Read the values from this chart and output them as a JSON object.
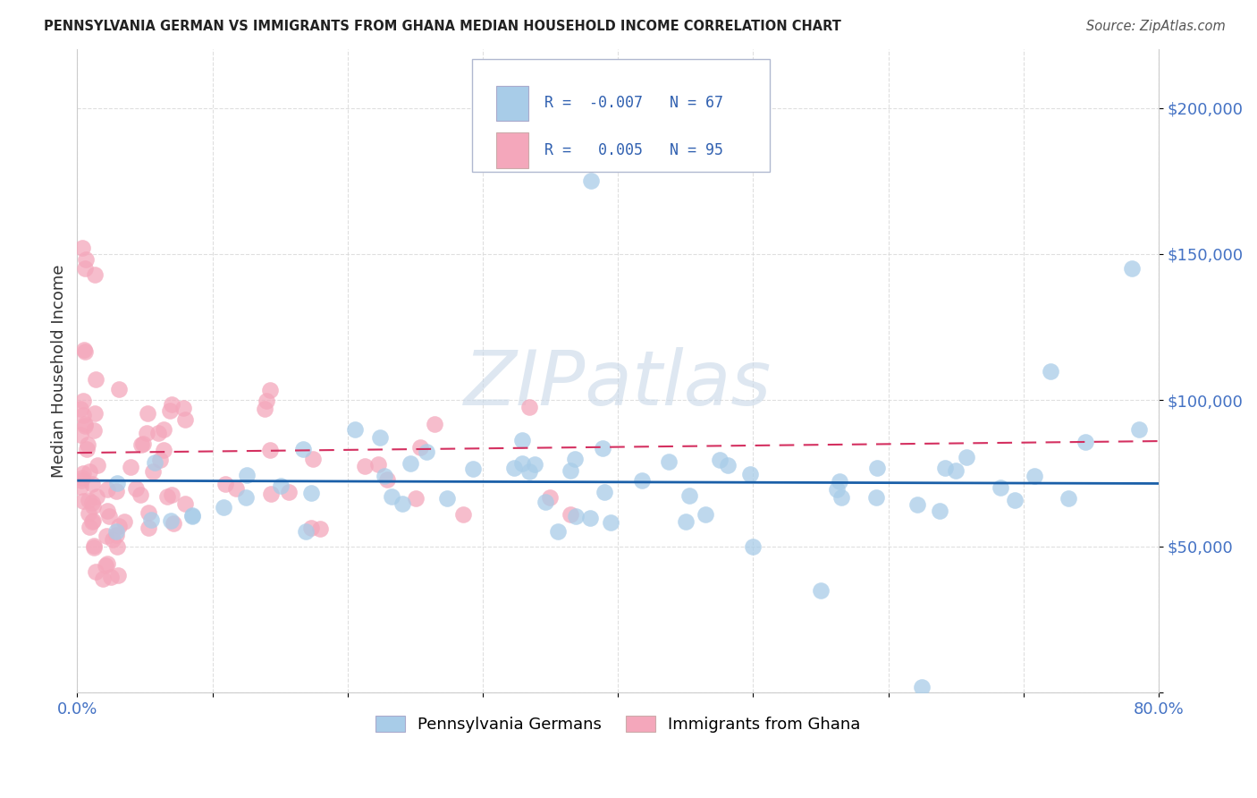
{
  "title": "PENNSYLVANIA GERMAN VS IMMIGRANTS FROM GHANA MEDIAN HOUSEHOLD INCOME CORRELATION CHART",
  "source": "Source: ZipAtlas.com",
  "ylabel": "Median Household Income",
  "watermark": "ZIPatlas",
  "xmin": 0.0,
  "xmax": 0.8,
  "ymin": 0,
  "ymax": 220000,
  "yticks": [
    0,
    50000,
    100000,
    150000,
    200000
  ],
  "ytick_labels": [
    "",
    "$50,000",
    "$100,000",
    "$150,000",
    "$200,000"
  ],
  "series1_name": "Pennsylvania Germans",
  "series1_color": "#a8cce8",
  "series1_line_color": "#1a5fa8",
  "series1_R": -0.007,
  "series1_N": 67,
  "series2_name": "Immigrants from Ghana",
  "series2_color": "#f4a7bb",
  "series2_line_color": "#d43060",
  "series2_R": 0.005,
  "series2_N": 95,
  "background_color": "#ffffff",
  "grid_color": "#d8d8d8",
  "legend_box_color": "#f0f0f8",
  "legend_border_color": "#b0b8d0"
}
